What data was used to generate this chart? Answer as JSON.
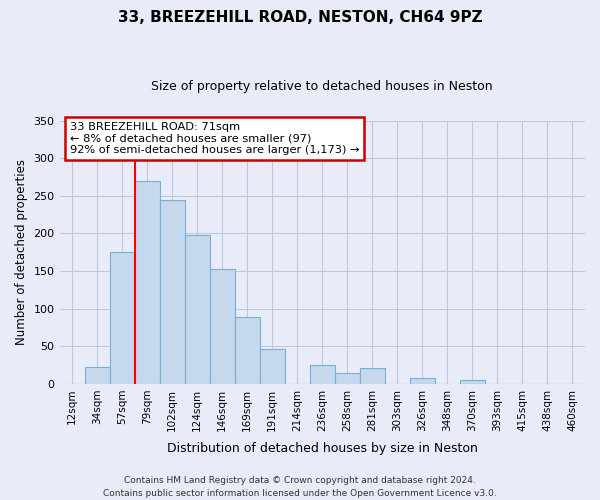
{
  "title": "33, BREEZEHILL ROAD, NESTON, CH64 9PZ",
  "subtitle": "Size of property relative to detached houses in Neston",
  "xlabel": "Distribution of detached houses by size in Neston",
  "ylabel": "Number of detached properties",
  "footer_line1": "Contains HM Land Registry data © Crown copyright and database right 2024.",
  "footer_line2": "Contains public sector information licensed under the Open Government Licence v3.0.",
  "bin_labels": [
    "12sqm",
    "34sqm",
    "57sqm",
    "79sqm",
    "102sqm",
    "124sqm",
    "146sqm",
    "169sqm",
    "191sqm",
    "214sqm",
    "236sqm",
    "258sqm",
    "281sqm",
    "303sqm",
    "326sqm",
    "348sqm",
    "370sqm",
    "393sqm",
    "415sqm",
    "438sqm",
    "460sqm"
  ],
  "bar_values": [
    0,
    23,
    175,
    270,
    245,
    198,
    153,
    89,
    47,
    0,
    25,
    14,
    21,
    0,
    8,
    0,
    5,
    0,
    0,
    0,
    0
  ],
  "bar_color": "#c5d8ee",
  "bar_edgecolor": "#7aafd4",
  "vline_color": "red",
  "annotation_line1": "33 BREEZEHILL ROAD: 71sqm",
  "annotation_line2": "← 8% of detached houses are smaller (97)",
  "annotation_line3": "92% of semi-detached houses are larger (1,173) →",
  "annotation_box_edgecolor": "#cc0000",
  "annotation_box_facecolor": "white",
  "ylim": [
    0,
    350
  ],
  "yticks": [
    0,
    50,
    100,
    150,
    200,
    250,
    300,
    350
  ],
  "fig_background": "#e8ecf8",
  "plot_background": "#e8ecf8",
  "grid_color": "#c0c8d8",
  "title_fontsize": 11,
  "subtitle_fontsize": 9,
  "tick_fontsize": 7.5,
  "ylabel_fontsize": 8.5,
  "xlabel_fontsize": 9,
  "footer_fontsize": 6.5
}
